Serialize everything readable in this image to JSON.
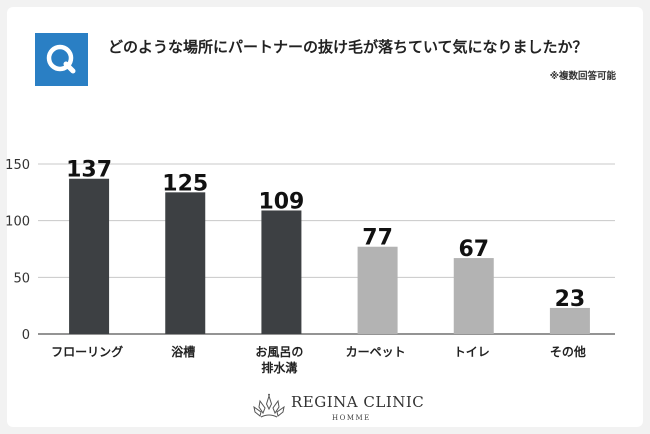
{
  "header": {
    "badge_letter": "Q",
    "question": "どのような場所にパートナーの抜け毛が落ちていて気になりましたか？",
    "note": "※複数回答可能"
  },
  "brand": {
    "name": "REGINA CLINIC",
    "sub": "HOMME"
  },
  "colors": {
    "badge": "#2a7fc4",
    "dark_bar": "#3d4043",
    "light_bar": "#b3b3b3",
    "background": "#f2f2f2"
  },
  "chart_data": {
    "type": "bar",
    "categories": [
      "フローリング",
      "浴槽",
      "お風呂の排水溝",
      "カーペット",
      "トイレ",
      "その他"
    ],
    "category_lines": [
      [
        "フローリング"
      ],
      [
        "浴槽"
      ],
      [
        "お風呂の",
        "排水溝"
      ],
      [
        "カーペット"
      ],
      [
        "トイレ"
      ],
      [
        "その他"
      ]
    ],
    "values": [
      137,
      125,
      109,
      77,
      67,
      23
    ],
    "bar_shades": [
      "dark",
      "dark",
      "dark",
      "light",
      "light",
      "light"
    ],
    "ylim": [
      0,
      150
    ],
    "yticks": [
      0,
      50,
      100,
      150
    ],
    "grid": true
  }
}
